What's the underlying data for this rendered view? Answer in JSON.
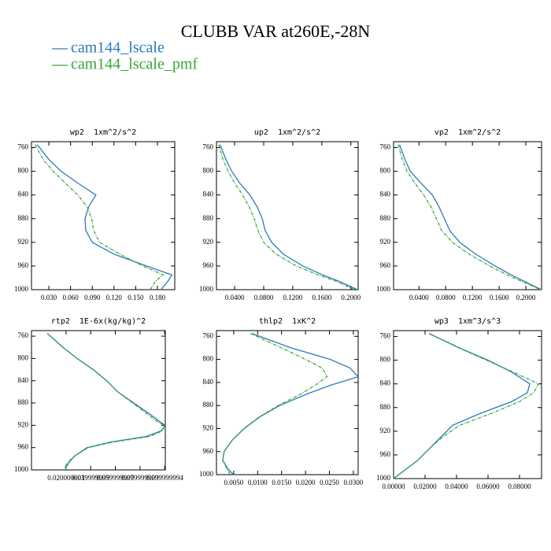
{
  "title": "CLUBB VAR at260E,-28N",
  "chart_data": [
    {
      "type": "line",
      "title": "wp2  1xm^2/s^2",
      "y_reversed": true,
      "y": [
        755,
        780,
        800,
        820,
        840,
        860,
        880,
        900,
        920,
        940,
        960,
        975,
        985,
        1000
      ],
      "series": [
        {
          "name": "cam144_lscale",
          "color": "#2b7bba",
          "linestyle": "solid",
          "values": [
            0.014,
            0.03,
            0.047,
            0.07,
            0.095,
            0.085,
            0.08,
            0.081,
            0.09,
            0.12,
            0.165,
            0.2,
            0.195,
            0.185
          ]
        },
        {
          "name": "cam144_lscale_pmf",
          "color": "#3aa63a",
          "linestyle": "dashed",
          "values": [
            0.011,
            0.022,
            0.036,
            0.053,
            0.07,
            0.083,
            0.089,
            0.092,
            0.1,
            0.128,
            0.16,
            0.188,
            0.178,
            0.17
          ]
        }
      ],
      "xlim": [
        0.006,
        0.204
      ],
      "ylim": [
        750,
        1000
      ],
      "xticks": [
        {
          "value": 0.03,
          "label": "0.030"
        },
        {
          "value": 0.06,
          "label": "0.060"
        },
        {
          "value": 0.09,
          "label": "0.090"
        },
        {
          "value": 0.12,
          "label": "0.120"
        },
        {
          "value": 0.15,
          "label": "0.150"
        },
        {
          "value": 0.18,
          "label": "0.180"
        }
      ],
      "yticks": [
        760,
        800,
        840,
        880,
        920,
        960,
        1000
      ]
    },
    {
      "type": "line",
      "title": "up2  1xm^2/s^2",
      "y_reversed": true,
      "y": [
        755,
        780,
        800,
        820,
        840,
        860,
        880,
        900,
        920,
        940,
        960,
        975,
        985,
        1000
      ],
      "series": [
        {
          "name": "cam144_lscale",
          "color": "#2b7bba",
          "linestyle": "solid",
          "values": [
            0.02,
            0.028,
            0.036,
            0.047,
            0.061,
            0.071,
            0.078,
            0.082,
            0.091,
            0.107,
            0.134,
            0.161,
            0.182,
            0.209
          ]
        },
        {
          "name": "cam144_lscale_pmf",
          "color": "#3aa63a",
          "linestyle": "dashed",
          "values": [
            0.018,
            0.024,
            0.031,
            0.04,
            0.051,
            0.06,
            0.067,
            0.072,
            0.08,
            0.097,
            0.125,
            0.155,
            0.178,
            0.205
          ]
        }
      ],
      "xlim": [
        0.015,
        0.21
      ],
      "ylim": [
        750,
        1000
      ],
      "xticks": [
        {
          "value": 0.04,
          "label": "0.0400"
        },
        {
          "value": 0.08,
          "label": "0.0800"
        },
        {
          "value": 0.12,
          "label": "0.1200"
        },
        {
          "value": 0.16,
          "label": "0.1600"
        },
        {
          "value": 0.2,
          "label": "0.2000"
        }
      ],
      "yticks": [
        760,
        800,
        840,
        880,
        920,
        960,
        1000
      ]
    },
    {
      "type": "line",
      "title": "vp2  1xm^2/s^2",
      "y_reversed": true,
      "y": [
        755,
        780,
        800,
        820,
        840,
        860,
        880,
        900,
        920,
        940,
        960,
        975,
        985,
        1000
      ],
      "series": [
        {
          "name": "cam144_lscale",
          "color": "#2b7bba",
          "linestyle": "solid",
          "values": [
            0.011,
            0.019,
            0.027,
            0.043,
            0.06,
            0.07,
            0.078,
            0.086,
            0.101,
            0.125,
            0.154,
            0.178,
            0.196,
            0.223
          ]
        },
        {
          "name": "cam144_lscale_pmf",
          "color": "#3aa63a",
          "linestyle": "dashed",
          "values": [
            0.009,
            0.015,
            0.022,
            0.034,
            0.047,
            0.058,
            0.066,
            0.074,
            0.09,
            0.115,
            0.146,
            0.172,
            0.192,
            0.222
          ]
        }
      ],
      "xlim": [
        0.002,
        0.2235
      ],
      "ylim": [
        750,
        1000
      ],
      "xticks": [
        {
          "value": 0.04,
          "label": "0.0400"
        },
        {
          "value": 0.08,
          "label": "0.0800"
        },
        {
          "value": 0.12,
          "label": "0.1200"
        },
        {
          "value": 0.16,
          "label": "0.1600"
        },
        {
          "value": 0.2,
          "label": "0.2000"
        }
      ],
      "yticks": [
        760,
        800,
        840,
        880,
        920,
        960,
        1000
      ]
    },
    {
      "type": "line",
      "title": "rtp2  1E-6x(kg/kg)^2",
      "y_reversed": true,
      "y": [
        755,
        780,
        800,
        820,
        840,
        860,
        880,
        900,
        915,
        920,
        930,
        940,
        950,
        960,
        975,
        985,
        995,
        1000
      ],
      "series": [
        {
          "name": "cam144_lscale",
          "color": "#2b7bba",
          "linestyle": "solid",
          "values": [
            0.0048,
            0.0175,
            0.029,
            0.042,
            0.053,
            0.062,
            0.075,
            0.088,
            0.097,
            0.1005,
            0.097,
            0.085,
            0.056,
            0.037,
            0.027,
            0.023,
            0.02,
            0.02
          ]
        },
        {
          "name": "cam144_lscale_pmf",
          "color": "#3aa63a",
          "linestyle": "dashed",
          "values": [
            0.0048,
            0.0175,
            0.029,
            0.042,
            0.053,
            0.062,
            0.074,
            0.086,
            0.095,
            0.1,
            0.098,
            0.088,
            0.058,
            0.038,
            0.027,
            0.022,
            0.019,
            0.019
          ]
        }
      ],
      "xlim": [
        -0.008,
        0.1005
      ],
      "ylim": [
        750,
        1000
      ],
      "xticks": [
        {
          "value": 0.02,
          "label": "0.020000001"
        },
        {
          "value": 0.04,
          "label": "0.039999999"
        },
        {
          "value": 0.06,
          "label": "0.059999999"
        },
        {
          "value": 0.08,
          "label": "0.079999999"
        },
        {
          "value": 0.1,
          "label": "0.099999994"
        }
      ],
      "yticks": [
        760,
        800,
        840,
        880,
        920,
        960,
        1000
      ]
    },
    {
      "type": "line",
      "title": "thlp2  1xK^2",
      "y_reversed": true,
      "y": [
        755,
        780,
        800,
        815,
        830,
        845,
        860,
        880,
        900,
        920,
        940,
        960,
        975,
        990,
        1000
      ],
      "series": [
        {
          "name": "cam144_lscale",
          "color": "#2b7bba",
          "linestyle": "solid",
          "values": [
            0.0088,
            0.017,
            0.0252,
            0.0293,
            0.031,
            0.0252,
            0.0203,
            0.0146,
            0.0104,
            0.0072,
            0.0047,
            0.003,
            0.0027,
            0.0038,
            0.005
          ]
        },
        {
          "name": "cam144_lscale_pmf",
          "color": "#3aa63a",
          "linestyle": "dashed",
          "values": [
            0.0085,
            0.015,
            0.02,
            0.0235,
            0.0245,
            0.022,
            0.019,
            0.0143,
            0.0103,
            0.0071,
            0.0047,
            0.003,
            0.0027,
            0.0036,
            0.0043
          ]
        }
      ],
      "xlim": [
        0.0014,
        0.031
      ],
      "ylim": [
        750,
        1000
      ],
      "xticks": [
        {
          "value": 0.005,
          "label": "0.0050"
        },
        {
          "value": 0.01,
          "label": "0.0100"
        },
        {
          "value": 0.015,
          "label": "0.0150"
        },
        {
          "value": 0.02,
          "label": "0.0200"
        },
        {
          "value": 0.025,
          "label": "0.0250"
        },
        {
          "value": 0.03,
          "label": "0.0300"
        }
      ],
      "yticks": [
        760,
        800,
        840,
        880,
        920,
        960,
        1000
      ]
    },
    {
      "type": "line",
      "title": "wp3  1xm^3/s^3",
      "y_reversed": true,
      "y": [
        755,
        780,
        800,
        820,
        840,
        855,
        870,
        890,
        910,
        930,
        950,
        970,
        985,
        1000
      ],
      "series": [
        {
          "name": "cam144_lscale",
          "color": "#2b7bba",
          "linestyle": "solid",
          "values": [
            0.0225,
            0.0425,
            0.06,
            0.075,
            0.0865,
            0.085,
            0.075,
            0.055,
            0.0375,
            0.03,
            0.0225,
            0.015,
            0.0075,
            0.0
          ]
        },
        {
          "name": "cam144_lscale_pmf",
          "color": "#3aa63a",
          "linestyle": "dashed",
          "values": [
            0.0225,
            0.042,
            0.059,
            0.076,
            0.092,
            0.089,
            0.08,
            0.062,
            0.042,
            0.031,
            0.0225,
            0.015,
            0.0075,
            0.0
          ]
        }
      ],
      "xlim": [
        0.0,
        0.094
      ],
      "ylim": [
        750,
        1000
      ],
      "xticks": [
        {
          "value": 0.0,
          "label": "0.00000"
        },
        {
          "value": 0.02,
          "label": "0.02000"
        },
        {
          "value": 0.04,
          "label": "0.04000"
        },
        {
          "value": 0.06,
          "label": "0.06000"
        },
        {
          "value": 0.08,
          "label": "0.08000"
        }
      ],
      "yticks": [
        760,
        800,
        840,
        880,
        920,
        960,
        1000
      ]
    }
  ]
}
